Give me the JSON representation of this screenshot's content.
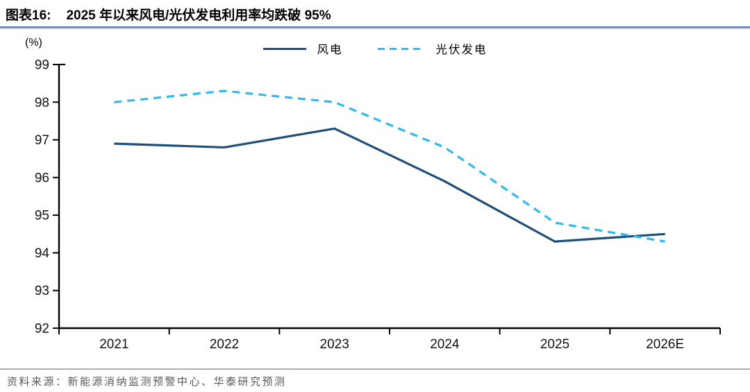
{
  "header": {
    "figure_label": "图表16:",
    "title": "2025 年以来风电/光伏发电利用率均跌破 95%"
  },
  "chart_data": {
    "type": "line",
    "categories": [
      "2021",
      "2022",
      "2023",
      "2024",
      "2025",
      "2026E"
    ],
    "series": [
      {
        "name": "风电",
        "style": "solid",
        "color": "#1F4E79",
        "values": [
          96.9,
          96.8,
          97.3,
          95.9,
          94.3,
          94.5
        ]
      },
      {
        "name": "光伏发电",
        "style": "dashed",
        "color": "#2FB8F2",
        "values": [
          98.0,
          98.3,
          98.0,
          96.8,
          94.8,
          94.3
        ]
      }
    ],
    "ylabel": "(%)",
    "xlabel": "",
    "ylim": [
      92,
      99
    ],
    "ytick_step": 1,
    "grid": false,
    "legend_position": "top-center"
  },
  "footer": {
    "source": "资料来源：新能源消纳监测预警中心、华泰研究预测"
  },
  "colors": {
    "wind_line": "#1F4E79",
    "solar_line": "#2FB8F2",
    "title_rule_dark": "#5b7ca3",
    "title_rule_light": "#b9c9db",
    "axis": "#000000",
    "footer_text": "#595959"
  }
}
